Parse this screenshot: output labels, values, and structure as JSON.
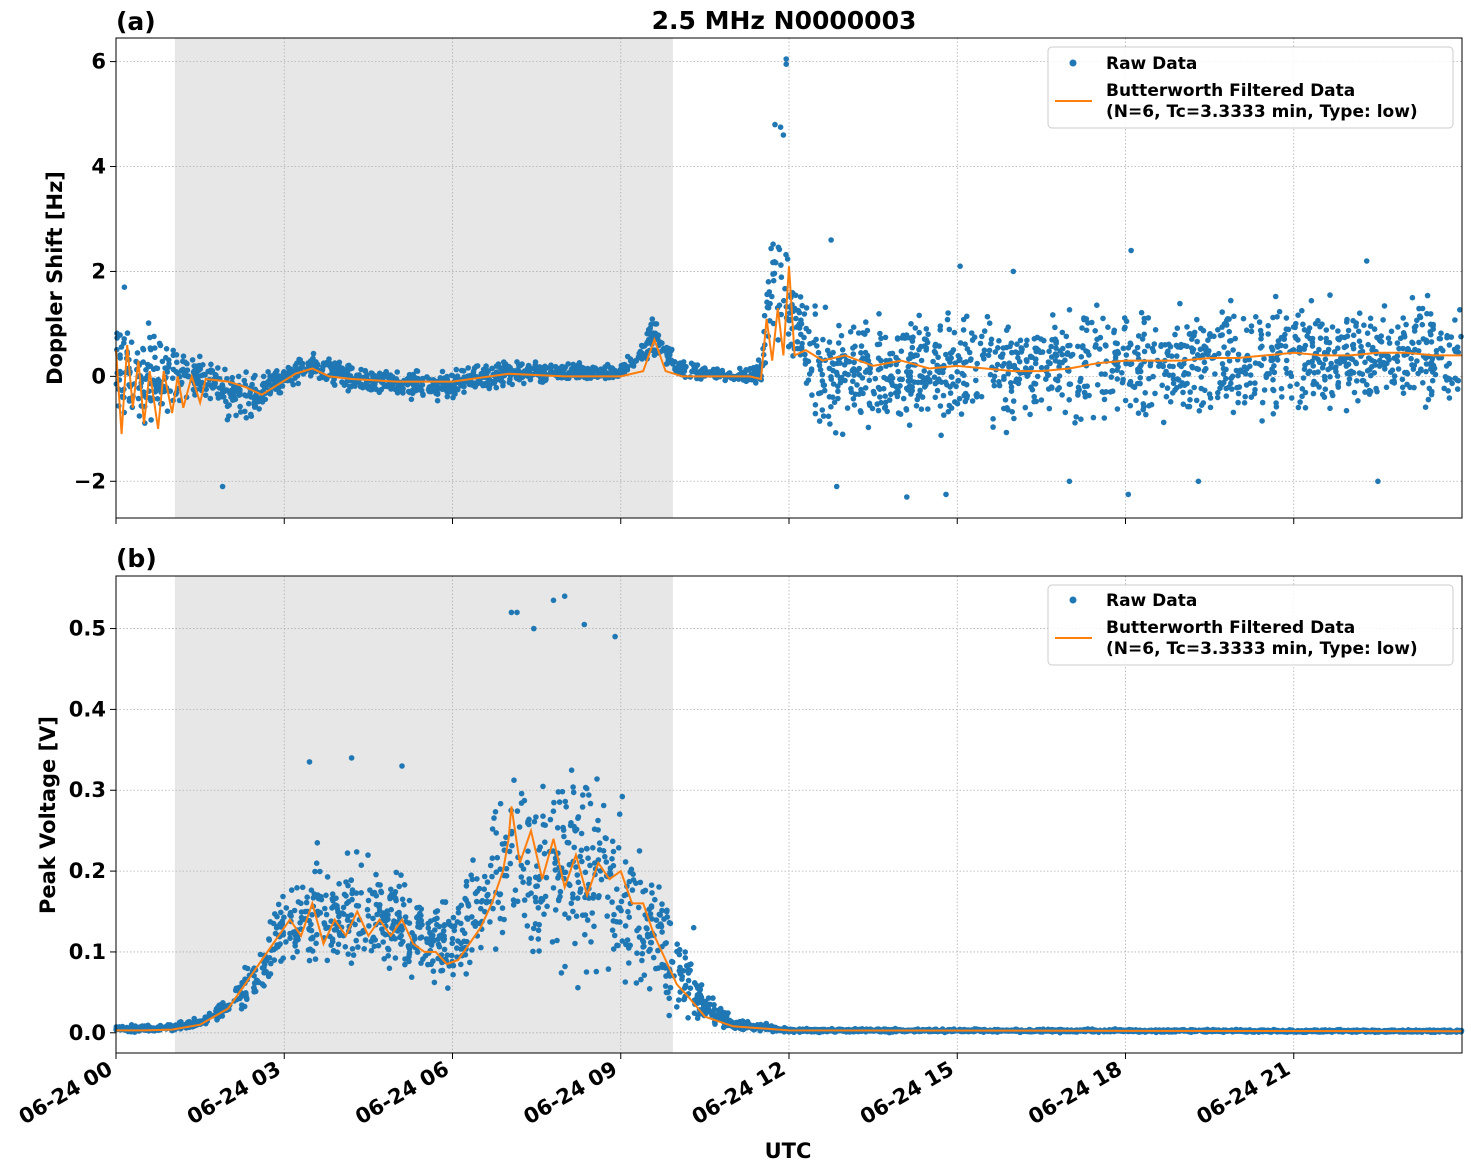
{
  "figure": {
    "title": "2.5 MHz N0000003",
    "xlabel": "UTC"
  },
  "colors": {
    "raw": "#1f77b4",
    "filtered": "#ff7f0e",
    "shade": "#e7e7e7",
    "grid": "#b0b0b0"
  },
  "chart_data": [
    {
      "type": "scatter",
      "panel_label": "(a)",
      "ylabel": "Doppler Shift [Hz]",
      "x_unit": "hours UTC on 06-24",
      "xlim": [
        0,
        24
      ],
      "ylim": [
        -2.7,
        6.45
      ],
      "x_ticks": [
        0,
        3,
        6,
        9,
        12,
        15,
        18,
        21
      ],
      "x_tick_labels": [
        "06-24 00",
        "06-24 03",
        "06-24 06",
        "06-24 09",
        "06-24 12",
        "06-24 15",
        "06-24 18",
        "06-24 21"
      ],
      "y_ticks": [
        -2,
        0,
        2,
        4,
        6
      ],
      "y_tick_labels": [
        "−2",
        "0",
        "2",
        "4",
        "6"
      ],
      "grid": true,
      "shaded_interval": [
        1.05,
        9.93
      ],
      "legend": {
        "placement": "upper right",
        "entries": [
          "Raw Data",
          "Butterworth Filtered Data",
          "(N=6, Tc=3.3333 min, Type: low)"
        ]
      },
      "series": [
        {
          "name": "Raw Data",
          "style": "dots",
          "envelope": [
            {
              "x": 0.0,
              "low": -1.1,
              "high": 1.5
            },
            {
              "x": 0.5,
              "low": -1.3,
              "high": 1.3
            },
            {
              "x": 1.0,
              "low": -1.2,
              "high": 1.1
            },
            {
              "x": 1.5,
              "low": -0.6,
              "high": 0.6
            },
            {
              "x": 2.0,
              "low": -1.0,
              "high": 0.25
            },
            {
              "x": 2.5,
              "low": -0.9,
              "high": 0.2
            },
            {
              "x": 3.0,
              "low": -0.3,
              "high": 0.3
            },
            {
              "x": 3.5,
              "low": -0.15,
              "high": 0.55
            },
            {
              "x": 4.0,
              "low": -0.35,
              "high": 0.35
            },
            {
              "x": 5.0,
              "low": -0.5,
              "high": 0.2
            },
            {
              "x": 6.0,
              "low": -0.55,
              "high": 0.2
            },
            {
              "x": 7.0,
              "low": -0.25,
              "high": 0.4
            },
            {
              "x": 8.0,
              "low": -0.15,
              "high": 0.3
            },
            {
              "x": 9.0,
              "low": -0.1,
              "high": 0.25
            },
            {
              "x": 9.6,
              "low": 0.2,
              "high": 1.3
            },
            {
              "x": 10.0,
              "low": -0.1,
              "high": 0.4
            },
            {
              "x": 11.0,
              "low": -0.1,
              "high": 0.1
            },
            {
              "x": 11.5,
              "low": -0.3,
              "high": 0.4
            },
            {
              "x": 11.7,
              "low": 0.2,
              "high": 3.8
            },
            {
              "x": 12.0,
              "low": 0.0,
              "high": 2.3
            },
            {
              "x": 12.5,
              "low": -1.3,
              "high": 1.5
            },
            {
              "x": 15.0,
              "low": -1.3,
              "high": 1.5
            },
            {
              "x": 18.0,
              "low": -1.2,
              "high": 1.7
            },
            {
              "x": 21.0,
              "low": -1.0,
              "high": 1.8
            },
            {
              "x": 24.0,
              "low": -1.0,
              "high": 1.8
            }
          ],
          "outliers": [
            {
              "x": 11.95,
              "y": 6.05
            },
            {
              "x": 11.95,
              "y": 5.95
            },
            {
              "x": 11.75,
              "y": 4.8
            },
            {
              "x": 11.85,
              "y": 4.75
            },
            {
              "x": 11.9,
              "y": 4.6
            },
            {
              "x": 12.75,
              "y": 2.6
            },
            {
              "x": 18.1,
              "y": 2.4
            },
            {
              "x": 22.3,
              "y": 2.2
            },
            {
              "x": 15.05,
              "y": 2.1
            },
            {
              "x": 1.9,
              "y": -2.1
            },
            {
              "x": 14.1,
              "y": -2.3
            },
            {
              "x": 14.8,
              "y": -2.25
            },
            {
              "x": 18.05,
              "y": -2.25
            },
            {
              "x": 12.85,
              "y": -2.1
            },
            {
              "x": 17.0,
              "y": -2.0
            },
            {
              "x": 19.3,
              "y": -2.0
            },
            {
              "x": 22.5,
              "y": -2.0
            },
            {
              "x": 0.15,
              "y": 1.7
            },
            {
              "x": 16.0,
              "y": 2.0
            }
          ]
        },
        {
          "name": "Butterworth Filtered Data",
          "style": "line",
          "points": [
            {
              "x": 0.0,
              "y": 0.5
            },
            {
              "x": 0.1,
              "y": -1.1
            },
            {
              "x": 0.2,
              "y": 0.6
            },
            {
              "x": 0.3,
              "y": -0.6
            },
            {
              "x": 0.4,
              "y": 0.3
            },
            {
              "x": 0.5,
              "y": -0.9
            },
            {
              "x": 0.6,
              "y": 0.1
            },
            {
              "x": 0.75,
              "y": -1.0
            },
            {
              "x": 0.85,
              "y": 0.1
            },
            {
              "x": 1.0,
              "y": -0.7
            },
            {
              "x": 1.1,
              "y": 0.0
            },
            {
              "x": 1.2,
              "y": -0.6
            },
            {
              "x": 1.35,
              "y": 0.0
            },
            {
              "x": 1.5,
              "y": -0.5
            },
            {
              "x": 1.6,
              "y": -0.05
            },
            {
              "x": 2.0,
              "y": -0.1
            },
            {
              "x": 2.3,
              "y": -0.2
            },
            {
              "x": 2.6,
              "y": -0.35
            },
            {
              "x": 2.9,
              "y": -0.15
            },
            {
              "x": 3.2,
              "y": 0.05
            },
            {
              "x": 3.5,
              "y": 0.15
            },
            {
              "x": 3.8,
              "y": 0.0
            },
            {
              "x": 4.2,
              "y": -0.05
            },
            {
              "x": 5.0,
              "y": -0.1
            },
            {
              "x": 6.0,
              "y": -0.1
            },
            {
              "x": 7.0,
              "y": 0.05
            },
            {
              "x": 8.0,
              "y": 0.0
            },
            {
              "x": 9.0,
              "y": 0.0
            },
            {
              "x": 9.4,
              "y": 0.1
            },
            {
              "x": 9.6,
              "y": 0.7
            },
            {
              "x": 9.8,
              "y": 0.1
            },
            {
              "x": 10.1,
              "y": 0.0
            },
            {
              "x": 11.3,
              "y": 0.0
            },
            {
              "x": 11.5,
              "y": -0.05
            },
            {
              "x": 11.6,
              "y": 1.1
            },
            {
              "x": 11.7,
              "y": 0.3
            },
            {
              "x": 11.8,
              "y": 1.3
            },
            {
              "x": 11.9,
              "y": 0.4
            },
            {
              "x": 12.0,
              "y": 2.1
            },
            {
              "x": 12.1,
              "y": 0.4
            },
            {
              "x": 12.3,
              "y": 0.5
            },
            {
              "x": 12.6,
              "y": 0.3
            },
            {
              "x": 13.0,
              "y": 0.4
            },
            {
              "x": 13.5,
              "y": 0.2
            },
            {
              "x": 14.0,
              "y": 0.3
            },
            {
              "x": 14.5,
              "y": 0.15
            },
            {
              "x": 15.0,
              "y": 0.2
            },
            {
              "x": 15.5,
              "y": 0.15
            },
            {
              "x": 16.0,
              "y": 0.1
            },
            {
              "x": 16.5,
              "y": 0.1
            },
            {
              "x": 17.0,
              "y": 0.15
            },
            {
              "x": 17.5,
              "y": 0.25
            },
            {
              "x": 18.0,
              "y": 0.3
            },
            {
              "x": 18.5,
              "y": 0.3
            },
            {
              "x": 19.0,
              "y": 0.3
            },
            {
              "x": 19.5,
              "y": 0.35
            },
            {
              "x": 20.0,
              "y": 0.35
            },
            {
              "x": 20.5,
              "y": 0.4
            },
            {
              "x": 21.0,
              "y": 0.45
            },
            {
              "x": 21.5,
              "y": 0.4
            },
            {
              "x": 22.0,
              "y": 0.4
            },
            {
              "x": 22.5,
              "y": 0.45
            },
            {
              "x": 23.0,
              "y": 0.45
            },
            {
              "x": 23.5,
              "y": 0.4
            },
            {
              "x": 24.0,
              "y": 0.4
            }
          ]
        }
      ]
    },
    {
      "type": "scatter",
      "panel_label": "(b)",
      "ylabel": "Peak Voltage [V]",
      "x_unit": "hours UTC on 06-24",
      "xlim": [
        0,
        24
      ],
      "ylim": [
        -0.025,
        0.565
      ],
      "x_ticks": [
        0,
        3,
        6,
        9,
        12,
        15,
        18,
        21
      ],
      "x_tick_labels": [
        "06-24 00",
        "06-24 03",
        "06-24 06",
        "06-24 09",
        "06-24 12",
        "06-24 15",
        "06-24 18",
        "06-24 21"
      ],
      "y_ticks": [
        0.0,
        0.1,
        0.2,
        0.3,
        0.4,
        0.5
      ],
      "y_tick_labels": [
        "0.0",
        "0.1",
        "0.2",
        "0.3",
        "0.4",
        "0.5"
      ],
      "grid": true,
      "shaded_interval": [
        1.05,
        9.93
      ],
      "legend": {
        "placement": "upper right",
        "entries": [
          "Raw Data",
          "Butterworth Filtered Data",
          "(N=6, Tc=3.3333 min, Type: low)"
        ]
      },
      "series": [
        {
          "name": "Raw Data",
          "style": "dots",
          "envelope": [
            {
              "x": 0.0,
              "low": 0.0,
              "high": 0.01
            },
            {
              "x": 1.0,
              "low": 0.0,
              "high": 0.012
            },
            {
              "x": 1.5,
              "low": 0.005,
              "high": 0.02
            },
            {
              "x": 2.0,
              "low": 0.015,
              "high": 0.05
            },
            {
              "x": 2.5,
              "low": 0.03,
              "high": 0.11
            },
            {
              "x": 3.0,
              "low": 0.05,
              "high": 0.2
            },
            {
              "x": 3.5,
              "low": 0.06,
              "high": 0.24
            },
            {
              "x": 4.0,
              "low": 0.05,
              "high": 0.23
            },
            {
              "x": 4.5,
              "low": 0.05,
              "high": 0.25
            },
            {
              "x": 5.0,
              "low": 0.05,
              "high": 0.22
            },
            {
              "x": 5.5,
              "low": 0.04,
              "high": 0.19
            },
            {
              "x": 6.0,
              "low": 0.035,
              "high": 0.18
            },
            {
              "x": 6.5,
              "low": 0.06,
              "high": 0.25
            },
            {
              "x": 7.0,
              "low": 0.08,
              "high": 0.37
            },
            {
              "x": 7.5,
              "low": 0.04,
              "high": 0.36
            },
            {
              "x": 8.0,
              "low": 0.04,
              "high": 0.38
            },
            {
              "x": 8.5,
              "low": 0.05,
              "high": 0.36
            },
            {
              "x": 9.0,
              "low": 0.03,
              "high": 0.33
            },
            {
              "x": 9.5,
              "low": 0.02,
              "high": 0.26
            },
            {
              "x": 10.0,
              "low": 0.01,
              "high": 0.15
            },
            {
              "x": 10.5,
              "low": 0.005,
              "high": 0.06
            },
            {
              "x": 11.0,
              "low": 0.002,
              "high": 0.02
            },
            {
              "x": 12.0,
              "low": 0.0,
              "high": 0.006
            },
            {
              "x": 24.0,
              "low": 0.0,
              "high": 0.004
            }
          ],
          "outliers": [
            {
              "x": 8.0,
              "y": 0.54
            },
            {
              "x": 7.8,
              "y": 0.535
            },
            {
              "x": 7.05,
              "y": 0.52
            },
            {
              "x": 7.15,
              "y": 0.52
            },
            {
              "x": 8.35,
              "y": 0.505
            },
            {
              "x": 7.45,
              "y": 0.5
            },
            {
              "x": 8.9,
              "y": 0.49
            },
            {
              "x": 4.2,
              "y": 0.34
            },
            {
              "x": 3.45,
              "y": 0.335
            },
            {
              "x": 5.1,
              "y": 0.33
            },
            {
              "x": 10.3,
              "y": 0.13
            }
          ]
        },
        {
          "name": "Butterworth Filtered Data",
          "style": "line",
          "points": [
            {
              "x": 0.0,
              "y": 0.003
            },
            {
              "x": 0.5,
              "y": 0.003
            },
            {
              "x": 1.0,
              "y": 0.004
            },
            {
              "x": 1.5,
              "y": 0.01
            },
            {
              "x": 2.0,
              "y": 0.03
            },
            {
              "x": 2.3,
              "y": 0.06
            },
            {
              "x": 2.6,
              "y": 0.09
            },
            {
              "x": 2.9,
              "y": 0.12
            },
            {
              "x": 3.1,
              "y": 0.14
            },
            {
              "x": 3.3,
              "y": 0.12
            },
            {
              "x": 3.5,
              "y": 0.16
            },
            {
              "x": 3.7,
              "y": 0.11
            },
            {
              "x": 3.9,
              "y": 0.14
            },
            {
              "x": 4.1,
              "y": 0.12
            },
            {
              "x": 4.3,
              "y": 0.15
            },
            {
              "x": 4.5,
              "y": 0.12
            },
            {
              "x": 4.7,
              "y": 0.14
            },
            {
              "x": 4.9,
              "y": 0.12
            },
            {
              "x": 5.1,
              "y": 0.14
            },
            {
              "x": 5.3,
              "y": 0.11
            },
            {
              "x": 5.5,
              "y": 0.1
            },
            {
              "x": 5.7,
              "y": 0.1
            },
            {
              "x": 5.9,
              "y": 0.085
            },
            {
              "x": 6.1,
              "y": 0.09
            },
            {
              "x": 6.3,
              "y": 0.11
            },
            {
              "x": 6.5,
              "y": 0.13
            },
            {
              "x": 6.7,
              "y": 0.16
            },
            {
              "x": 6.9,
              "y": 0.2
            },
            {
              "x": 7.0,
              "y": 0.24
            },
            {
              "x": 7.05,
              "y": 0.28
            },
            {
              "x": 7.2,
              "y": 0.21
            },
            {
              "x": 7.4,
              "y": 0.25
            },
            {
              "x": 7.6,
              "y": 0.19
            },
            {
              "x": 7.8,
              "y": 0.24
            },
            {
              "x": 8.0,
              "y": 0.18
            },
            {
              "x": 8.2,
              "y": 0.22
            },
            {
              "x": 8.4,
              "y": 0.17
            },
            {
              "x": 8.6,
              "y": 0.21
            },
            {
              "x": 8.8,
              "y": 0.19
            },
            {
              "x": 9.0,
              "y": 0.2
            },
            {
              "x": 9.2,
              "y": 0.16
            },
            {
              "x": 9.4,
              "y": 0.16
            },
            {
              "x": 9.6,
              "y": 0.12
            },
            {
              "x": 9.8,
              "y": 0.09
            },
            {
              "x": 10.0,
              "y": 0.06
            },
            {
              "x": 10.2,
              "y": 0.045
            },
            {
              "x": 10.5,
              "y": 0.02
            },
            {
              "x": 11.0,
              "y": 0.008
            },
            {
              "x": 12.0,
              "y": 0.003
            },
            {
              "x": 24.0,
              "y": 0.002
            }
          ]
        }
      ]
    }
  ]
}
